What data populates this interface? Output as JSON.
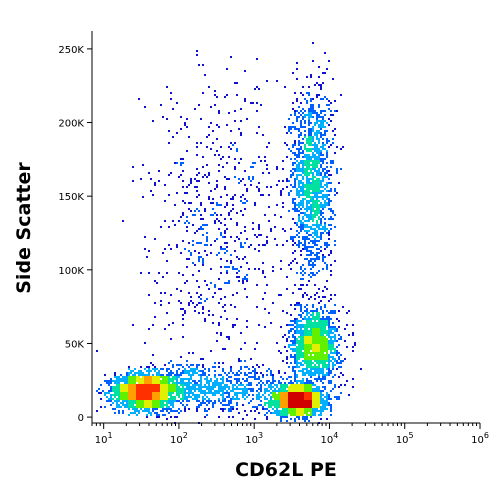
{
  "chart_data": {
    "type": "scatter",
    "title": "",
    "xlabel": "CD62L PE",
    "ylabel": "Side Scatter",
    "x_scale": "log",
    "xlim": [
      7,
      1000000
    ],
    "ylim": [
      -4000,
      262144
    ],
    "x_ticks": [
      {
        "value": 10,
        "mantissa": "10",
        "exp": "1"
      },
      {
        "value": 100,
        "mantissa": "10",
        "exp": "2"
      },
      {
        "value": 1000,
        "mantissa": "10",
        "exp": "3"
      },
      {
        "value": 10000,
        "mantissa": "10",
        "exp": "4"
      },
      {
        "value": 100000,
        "mantissa": "10",
        "exp": "5"
      },
      {
        "value": 1000000,
        "mantissa": "10",
        "exp": "6"
      }
    ],
    "y_ticks": [
      {
        "value": 0,
        "label": "0"
      },
      {
        "value": 50000,
        "label": "50K"
      },
      {
        "value": 100000,
        "label": "100K"
      },
      {
        "value": 150000,
        "label": "150K"
      },
      {
        "value": 200000,
        "label": "200K"
      },
      {
        "value": 250000,
        "label": "250K"
      }
    ],
    "grid": false,
    "legend": "none",
    "rendering": "density pseudocolor dot plot",
    "color_scale": [
      "#1010d0",
      "#0060ff",
      "#00b0ff",
      "#00e0a0",
      "#60f000",
      "#e0f000",
      "#ffa000",
      "#ff3000",
      "#d00000"
    ],
    "populations": [
      {
        "x_log_center": 1.55,
        "x_log_spread": 0.2,
        "y_center": 18000,
        "y_spread": 6000,
        "density": "high"
      },
      {
        "x_log_center": 3.57,
        "x_log_spread": 0.17,
        "y_center": 12000,
        "y_spread": 5000,
        "density": "high"
      },
      {
        "x_log_center": 3.75,
        "x_log_spread": 0.14,
        "y_center": 160000,
        "y_spread": 32000,
        "density": "medium"
      },
      {
        "x_log_center": 3.8,
        "x_log_spread": 0.16,
        "y_center": 50000,
        "y_spread": 12000,
        "density": "medium"
      },
      {
        "x_log_center": 2.3,
        "x_log_spread": 0.65,
        "y_center": 20000,
        "y_spread": 8000,
        "density": "low"
      },
      {
        "x_log_center": 2.5,
        "x_log_spread": 0.45,
        "y_center": 130000,
        "y_spread": 50000,
        "density": "sparse"
      }
    ]
  }
}
